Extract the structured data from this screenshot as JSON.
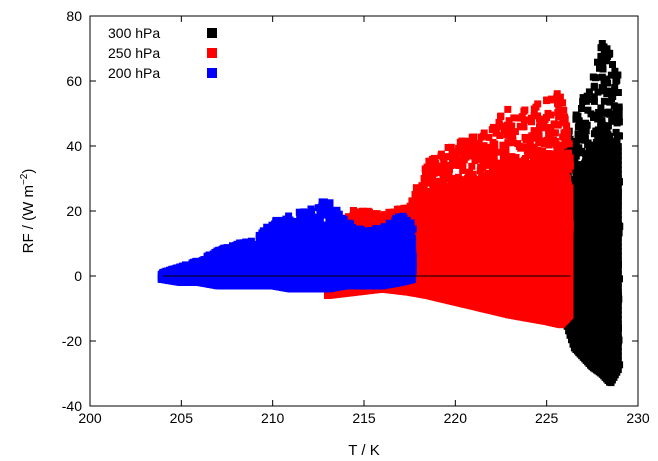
{
  "chart_data": {
    "type": "scatter",
    "xlabel": "T / K",
    "ylabel_main": "RF / (W m",
    "ylabel_sup": "−2",
    "ylabel_close": ")",
    "xlim": [
      200,
      230
    ],
    "ylim": [
      -40,
      80
    ],
    "xticks": [
      200,
      205,
      210,
      215,
      220,
      225,
      230
    ],
    "yticks": [
      -40,
      -20,
      0,
      20,
      40,
      60,
      80
    ],
    "grid": false,
    "zero_line": true,
    "legend_position": "top-left",
    "series": [
      {
        "name": "300 hPa",
        "color": "#000000",
        "envelope": [
          [
            225.8,
            -10,
            40
          ],
          [
            226.5,
            -22,
            48
          ],
          [
            227.0,
            -25,
            55
          ],
          [
            227.5,
            -28,
            60
          ],
          [
            228.0,
            -30,
            74
          ],
          [
            228.5,
            -33,
            68
          ],
          [
            229.0,
            -28,
            62
          ]
        ]
      },
      {
        "name": "250 hPa",
        "color": "#ff0000",
        "envelope": [
          [
            213.0,
            -6,
            12
          ],
          [
            214.5,
            -5,
            21
          ],
          [
            216.0,
            -4,
            19
          ],
          [
            217.5,
            -5,
            22
          ],
          [
            218.5,
            -6,
            36
          ],
          [
            220.0,
            -8,
            41
          ],
          [
            221.5,
            -10,
            44
          ],
          [
            223.0,
            -12,
            52
          ],
          [
            224.0,
            -13,
            51
          ],
          [
            225.0,
            -14,
            55
          ],
          [
            225.8,
            -15,
            57
          ],
          [
            226.3,
            -12,
            40
          ]
        ]
      },
      {
        "name": "200 hPa",
        "color": "#0000ff",
        "envelope": [
          [
            203.9,
            -1,
            1
          ],
          [
            205.0,
            -2,
            3
          ],
          [
            206.0,
            -2,
            5
          ],
          [
            207.0,
            -3,
            8
          ],
          [
            208.0,
            -3,
            10
          ],
          [
            209.0,
            -3,
            11
          ],
          [
            210.0,
            -3,
            17
          ],
          [
            211.0,
            -4,
            19
          ],
          [
            212.0,
            -4,
            21
          ],
          [
            213.0,
            -4,
            24
          ],
          [
            214.0,
            -3,
            17
          ],
          [
            215.0,
            -3,
            14
          ],
          [
            216.0,
            -3,
            15
          ],
          [
            217.0,
            -2,
            19
          ],
          [
            217.7,
            -1,
            16
          ]
        ]
      }
    ]
  }
}
